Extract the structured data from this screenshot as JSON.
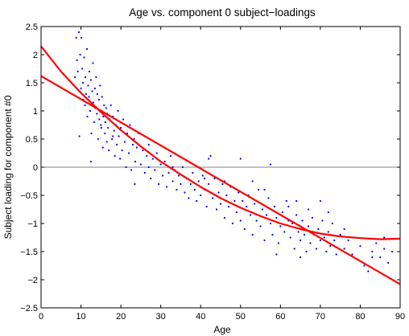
{
  "chart_data": {
    "type": "scatter",
    "title": "Age vs. component 0 subject−loadings",
    "xlabel": "Age",
    "ylabel": "Subject loading for component #0",
    "xlim": [
      0,
      90
    ],
    "ylim": [
      -2.5,
      2.5
    ],
    "x_ticks": [
      0,
      10,
      20,
      30,
      40,
      50,
      60,
      70,
      80,
      90
    ],
    "y_ticks": [
      -2.5,
      -2,
      -1.5,
      -1,
      -0.5,
      0,
      0.5,
      1,
      1.5,
      2,
      2.5
    ],
    "x_tick_labels": [
      "0",
      "10",
      "20",
      "30",
      "40",
      "50",
      "60",
      "70",
      "80",
      "90"
    ],
    "y_tick_labels": [
      "−2.5",
      "−2",
      "−1.5",
      "−1",
      "−0.5",
      "0",
      "0.5",
      "1",
      "1.5",
      "2",
      "2.5"
    ],
    "grid": false,
    "zero_line": {
      "y": 0,
      "color": "#808080"
    },
    "series": [
      {
        "type": "scatter",
        "color": "#0000ff",
        "marker": "dot",
        "points": [
          [
            8.5,
            1.6
          ],
          [
            8.8,
            2.3
          ],
          [
            9,
            1.9
          ],
          [
            9.2,
            1.7
          ],
          [
            9.5,
            2.4
          ],
          [
            9.6,
            0.55
          ],
          [
            9.8,
            2.0
          ],
          [
            10,
            1.4
          ],
          [
            10.1,
            2.3
          ],
          [
            10.3,
            1.75
          ],
          [
            10.5,
            1.5
          ],
          [
            10.6,
            1.2
          ],
          [
            10.8,
            1.95
          ],
          [
            11,
            1.1
          ],
          [
            11.1,
            1.6
          ],
          [
            11.3,
            1.3
          ],
          [
            11.5,
            2.1
          ],
          [
            11.6,
            0.9
          ],
          [
            11.8,
            1.45
          ],
          [
            12,
            1.25
          ],
          [
            12.1,
            1.7
          ],
          [
            12.3,
            1.0
          ],
          [
            12.5,
            1.55
          ],
          [
            12.6,
            0.6
          ],
          [
            12.8,
            1.35
          ],
          [
            13,
            1.85
          ],
          [
            13.1,
            1.15
          ],
          [
            13.3,
            0.8
          ],
          [
            13.5,
            1.4
          ],
          [
            13.6,
            1.05
          ],
          [
            13.8,
            1.6
          ],
          [
            14,
            0.95
          ],
          [
            14.1,
            1.3
          ],
          [
            14.3,
            0.5
          ],
          [
            14.5,
            1.2
          ],
          [
            14.6,
            0.85
          ],
          [
            14.8,
            1.45
          ],
          [
            15,
            1.0
          ],
          [
            15.1,
            0.7
          ],
          [
            15.3,
            1.25
          ],
          [
            15.5,
            0.35
          ],
          [
            15.6,
            0.9
          ],
          [
            15.8,
            1.1
          ],
          [
            16,
            0.6
          ],
          [
            16.1,
            0.8
          ],
          [
            16.3,
            1.05
          ],
          [
            16.5,
            0.45
          ],
          [
            16.6,
            0.95
          ],
          [
            16.8,
            0.7
          ],
          [
            17,
            0.3
          ],
          [
            17.2,
            0.85
          ],
          [
            17.5,
            1.1
          ],
          [
            17.8,
            0.5
          ],
          [
            18,
            0.9
          ],
          [
            18.3,
            0.65
          ],
          [
            18.5,
            0.2
          ],
          [
            18.8,
            0.75
          ],
          [
            19,
            0.4
          ],
          [
            19.3,
            1.0
          ],
          [
            19.5,
            0.55
          ],
          [
            19.8,
            0.15
          ],
          [
            20,
            0.7
          ],
          [
            20.3,
            0.3
          ],
          [
            20.6,
            0.85
          ],
          [
            21,
            0.45
          ],
          [
            21.3,
            0.0
          ],
          [
            21.6,
            0.6
          ],
          [
            22,
            0.25
          ],
          [
            22.3,
            0.75
          ],
          [
            22.6,
            -0.05
          ],
          [
            23,
            0.4
          ],
          [
            23.3,
            0.5
          ],
          [
            23.6,
            0.1
          ],
          [
            24,
            0.35
          ],
          [
            24.5,
            0.6
          ],
          [
            25,
            0.05
          ],
          [
            25.5,
            0.3
          ],
          [
            26,
            -0.1
          ],
          [
            26.5,
            0.2
          ],
          [
            27,
            0.4
          ],
          [
            27.5,
            -0.2
          ],
          [
            28,
            0.15
          ],
          [
            28.5,
            -0.05
          ],
          [
            29,
            0.25
          ],
          [
            29.5,
            -0.3
          ],
          [
            30,
            0.05
          ],
          [
            30.5,
            -0.15
          ],
          [
            31,
            0.1
          ],
          [
            31.5,
            -0.35
          ],
          [
            32,
            -0.1
          ],
          [
            32.5,
            0.2
          ],
          [
            33,
            -0.25
          ],
          [
            33.5,
            -0.05
          ],
          [
            34,
            -0.4
          ],
          [
            34.5,
            -0.15
          ],
          [
            35,
            -0.3
          ],
          [
            35.5,
            0.0
          ],
          [
            36,
            -0.45
          ],
          [
            36.5,
            -0.2
          ],
          [
            37,
            -0.55
          ],
          [
            37.5,
            -0.3
          ],
          [
            38,
            -0.1
          ],
          [
            38.5,
            -0.4
          ],
          [
            39,
            -0.6
          ],
          [
            39.5,
            -0.25
          ],
          [
            40,
            -0.5
          ],
          [
            40.5,
            -0.15
          ],
          [
            41,
            -0.4
          ],
          [
            41.5,
            -0.7
          ],
          [
            42,
            -0.3
          ],
          [
            42.5,
            0.2
          ],
          [
            43,
            -0.55
          ],
          [
            43.5,
            -0.2
          ],
          [
            44,
            -0.75
          ],
          [
            44.5,
            -0.45
          ],
          [
            45,
            -0.65
          ],
          [
            45.5,
            -0.3
          ],
          [
            46,
            -0.9
          ],
          [
            46.5,
            -0.5
          ],
          [
            47,
            -0.7
          ],
          [
            47.5,
            -0.35
          ],
          [
            48,
            -1.0
          ],
          [
            48.5,
            -0.6
          ],
          [
            49,
            -0.8
          ],
          [
            49.5,
            -0.45
          ],
          [
            50,
            -0.95
          ],
          [
            50.5,
            -0.6
          ],
          [
            51,
            -1.1
          ],
          [
            51.5,
            -0.7
          ],
          [
            52,
            -0.5
          ],
          [
            52.5,
            -0.85
          ],
          [
            53,
            -1.2
          ],
          [
            53.5,
            -0.65
          ],
          [
            54,
            -0.95
          ],
          [
            54.5,
            -0.4
          ],
          [
            55,
            -1.05
          ],
          [
            55.5,
            -0.75
          ],
          [
            56,
            -1.3
          ],
          [
            56.5,
            -0.85
          ],
          [
            57,
            -0.55
          ],
          [
            57.5,
            -1.0
          ],
          [
            58,
            -1.2
          ],
          [
            58.5,
            -0.7
          ],
          [
            59,
            -0.9
          ],
          [
            59.5,
            -1.35
          ],
          [
            60,
            -1.05
          ],
          [
            60.5,
            -0.8
          ],
          [
            61,
            -1.15
          ],
          [
            61.5,
            -0.6
          ],
          [
            62,
            -0.95
          ],
          [
            62.5,
            -1.25
          ],
          [
            63,
            -1.0
          ],
          [
            63.5,
            -1.45
          ],
          [
            64,
            -0.85
          ],
          [
            64.5,
            -1.15
          ],
          [
            65,
            -1.3
          ],
          [
            65.5,
            -0.95
          ],
          [
            66,
            -1.2
          ],
          [
            66.5,
            -1.5
          ],
          [
            67,
            -1.05
          ],
          [
            67.5,
            -1.35
          ],
          [
            68,
            -0.9
          ],
          [
            68.5,
            -1.2
          ],
          [
            69,
            -1.45
          ],
          [
            69.5,
            -1.1
          ],
          [
            70,
            -1.3
          ],
          [
            70.5,
            -0.95
          ],
          [
            71,
            -1.25
          ],
          [
            71.5,
            -1.5
          ],
          [
            72,
            -1.15
          ],
          [
            72.5,
            -1.4
          ],
          [
            73,
            -1.0
          ],
          [
            73.5,
            -1.3
          ],
          [
            74,
            -1.55
          ],
          [
            75,
            -1.2
          ],
          [
            76,
            -1.45
          ],
          [
            77,
            -1.3
          ],
          [
            78,
            -1.55
          ],
          [
            80,
            -1.4
          ],
          [
            81,
            -1.75
          ],
          [
            82,
            -1.85
          ],
          [
            83,
            -1.5
          ],
          [
            84,
            -1.35
          ],
          [
            85,
            -1.6
          ],
          [
            86,
            -1.45
          ],
          [
            87,
            -1.7
          ],
          [
            88,
            -1.5
          ],
          [
            12.5,
            0.1
          ],
          [
            15,
            0.75
          ],
          [
            18,
            0.55
          ],
          [
            23.5,
            -0.3
          ],
          [
            27,
            0.0
          ],
          [
            33,
            0.0
          ],
          [
            41,
            -0.2
          ],
          [
            46,
            -0.25
          ],
          [
            50,
            0.15
          ],
          [
            53,
            -0.25
          ],
          [
            56,
            -0.4
          ],
          [
            62,
            -0.7
          ],
          [
            64,
            -0.6
          ],
          [
            67,
            -0.75
          ],
          [
            70,
            -0.6
          ],
          [
            72,
            -0.8
          ],
          [
            76,
            -1.1
          ],
          [
            83,
            -1.6
          ],
          [
            86,
            -1.25
          ],
          [
            42,
            0.15
          ],
          [
            59,
            -1.55
          ],
          [
            65,
            -1.6
          ],
          [
            57.5,
            0.05
          ]
        ]
      },
      {
        "type": "line",
        "name": "",
        "color": "#ff0000",
        "points": [
          [
            0,
            1.62
          ],
          [
            90,
            -2.08
          ]
        ]
      },
      {
        "type": "line",
        "name": "",
        "color": "#ff0000",
        "points": [
          [
            0,
            2.15
          ],
          [
            5,
            1.7
          ],
          [
            10,
            1.32
          ],
          [
            15,
            0.98
          ],
          [
            20,
            0.66
          ],
          [
            25,
            0.37
          ],
          [
            30,
            0.1
          ],
          [
            35,
            -0.13
          ],
          [
            40,
            -0.35
          ],
          [
            45,
            -0.55
          ],
          [
            50,
            -0.72
          ],
          [
            55,
            -0.87
          ],
          [
            60,
            -1.0
          ],
          [
            65,
            -1.1
          ],
          [
            70,
            -1.18
          ],
          [
            75,
            -1.23
          ],
          [
            80,
            -1.26
          ],
          [
            85,
            -1.28
          ],
          [
            90,
            -1.27
          ]
        ]
      }
    ]
  }
}
